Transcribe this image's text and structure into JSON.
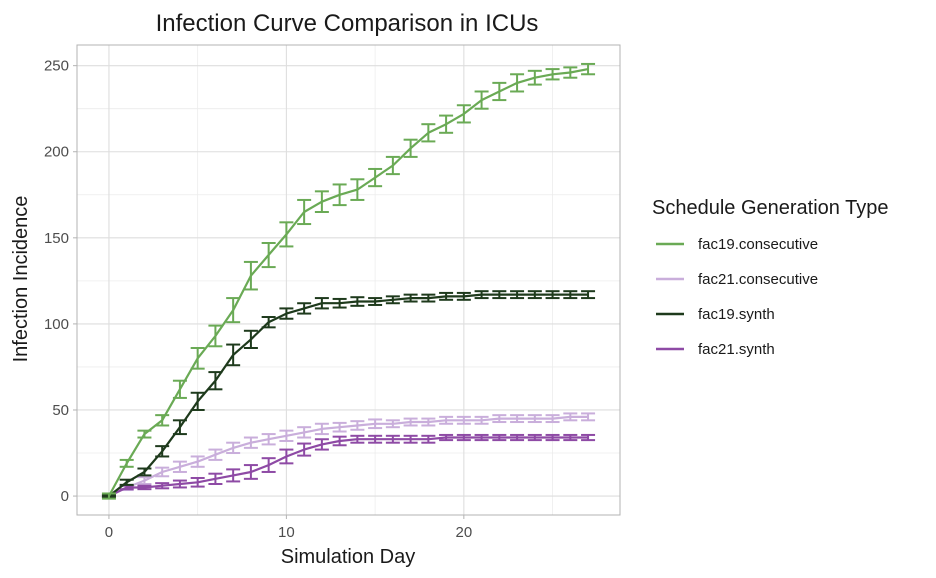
{
  "chart_data": {
    "type": "line",
    "title": "Infection Curve Comparison in ICUs",
    "xlabel": "Simulation Day",
    "ylabel": "Infection Incidence",
    "xlim": [
      -1.8,
      28.8
    ],
    "ylim": [
      -11,
      262
    ],
    "xticks": [
      0,
      10,
      20
    ],
    "yticks": [
      0,
      50,
      100,
      150,
      200,
      250
    ],
    "grid": true,
    "error_bars": true,
    "legend": {
      "title": "Schedule Generation Type",
      "position": "right"
    },
    "x": [
      0,
      1,
      2,
      3,
      4,
      5,
      6,
      7,
      8,
      9,
      10,
      11,
      12,
      13,
      14,
      15,
      16,
      17,
      18,
      19,
      20,
      21,
      22,
      23,
      24,
      25,
      26,
      27
    ],
    "series": [
      {
        "name": "fac19.consecutive",
        "color": "#6aaa55",
        "values": [
          0,
          19,
          36,
          44,
          62,
          80,
          93,
          108,
          128,
          140,
          152,
          165,
          171,
          175,
          178,
          185,
          192,
          202,
          211,
          216,
          222,
          230,
          235,
          240,
          243,
          245,
          246,
          248
        ],
        "errors": [
          1.5,
          2,
          2,
          3,
          5,
          6,
          6,
          7,
          8,
          7,
          7,
          7,
          6,
          6,
          6,
          5,
          5,
          5,
          5,
          5,
          5,
          5,
          5,
          5,
          4,
          3,
          3,
          3
        ]
      },
      {
        "name": "fac21.consecutive",
        "color": "#c9aedb",
        "values": [
          0,
          5,
          9,
          14,
          17,
          20,
          24,
          28,
          31,
          33,
          35,
          37,
          39,
          40,
          41,
          42,
          42,
          43,
          43,
          44,
          44,
          44,
          45,
          45,
          45,
          45,
          46,
          46
        ],
        "errors": [
          0.5,
          1.5,
          2,
          2.5,
          3,
          3,
          3,
          3,
          3,
          3,
          3,
          3,
          3,
          2.5,
          2.5,
          2.5,
          2,
          2,
          2,
          2,
          2,
          2,
          2,
          2,
          2,
          2,
          2,
          2
        ]
      },
      {
        "name": "fac19.synth",
        "color": "#1e3a1c",
        "values": [
          0,
          8,
          14,
          26,
          40,
          55,
          67,
          82,
          91,
          101,
          106,
          109,
          112,
          112,
          113,
          113,
          114,
          115,
          115,
          116,
          116,
          117,
          117,
          117,
          117,
          117,
          117,
          117
        ],
        "errors": [
          0.5,
          1.5,
          2,
          3,
          4,
          5,
          5,
          6,
          5,
          3,
          3,
          3,
          3,
          2.5,
          2.5,
          2,
          2,
          2,
          2,
          2,
          2,
          2,
          2,
          2,
          2,
          2,
          2,
          2
        ]
      },
      {
        "name": "fac21.synth",
        "color": "#8e4aa5",
        "values": [
          0,
          5,
          5,
          6,
          7,
          8,
          10,
          12,
          14,
          18,
          23,
          27,
          30,
          32,
          33,
          33,
          33,
          33,
          33,
          34,
          34,
          34,
          34,
          34,
          34,
          34,
          34,
          34
        ],
        "errors": [
          0.5,
          1,
          1,
          1.5,
          2,
          2.5,
          3,
          3.5,
          4,
          4,
          4,
          3.5,
          3,
          2.5,
          2,
          2,
          2,
          2,
          2,
          1.5,
          1.5,
          1.5,
          1.5,
          1.5,
          1.5,
          1.5,
          1.5,
          1.5
        ]
      }
    ]
  }
}
